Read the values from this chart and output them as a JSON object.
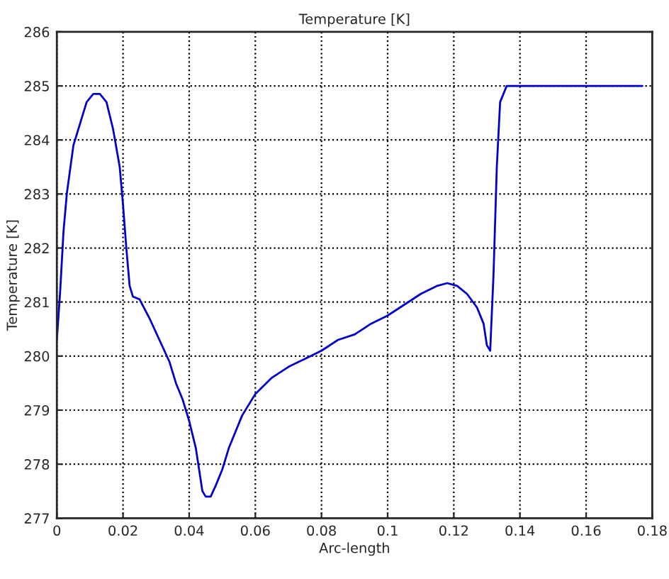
{
  "chart_data": {
    "type": "line",
    "title": "Temperature [K]",
    "xlabel": "Arc-length",
    "ylabel": "Temperature [K]",
    "x": [
      0,
      0.001,
      0.002,
      0.003,
      0.005,
      0.007,
      0.009,
      0.011,
      0.013,
      0.015,
      0.017,
      0.019,
      0.02,
      0.021,
      0.022,
      0.023,
      0.025,
      0.028,
      0.031,
      0.034,
      0.036,
      0.038,
      0.04,
      0.042,
      0.043,
      0.044,
      0.045,
      0.0465,
      0.048,
      0.05,
      0.052,
      0.054,
      0.056,
      0.058,
      0.06,
      0.065,
      0.07,
      0.075,
      0.08,
      0.085,
      0.09,
      0.095,
      0.1,
      0.105,
      0.11,
      0.115,
      0.118,
      0.121,
      0.124,
      0.127,
      0.129,
      0.13,
      0.131,
      0.132,
      0.133,
      0.134,
      0.136,
      0.177
    ],
    "series": [
      {
        "color": "#0000cc",
        "values": [
          280.3,
          281.2,
          282.3,
          283.0,
          283.9,
          284.3,
          284.7,
          284.85,
          284.85,
          284.7,
          284.2,
          283.5,
          282.8,
          282.0,
          281.3,
          281.1,
          281.05,
          280.7,
          280.3,
          279.9,
          279.5,
          279.2,
          278.8,
          278.3,
          277.9,
          277.5,
          277.4,
          277.4,
          277.6,
          277.9,
          278.3,
          278.6,
          278.9,
          279.1,
          279.3,
          279.6,
          279.8,
          279.95,
          280.1,
          280.3,
          280.4,
          280.6,
          280.75,
          280.95,
          281.15,
          281.3,
          281.35,
          281.3,
          281.15,
          280.9,
          280.6,
          280.2,
          280.1,
          281.5,
          283.5,
          284.7,
          285.0,
          285.0
        ]
      }
    ],
    "xlim": [
      0,
      0.18
    ],
    "xticks": [
      0,
      0.02,
      0.04,
      0.06,
      0.08,
      0.1,
      0.12,
      0.14,
      0.16,
      0.18
    ],
    "ylim": [
      277,
      286
    ],
    "yticks": [
      277,
      278,
      279,
      280,
      281,
      282,
      283,
      284,
      285,
      286
    ],
    "grid": true,
    "marker": "none",
    "line_style": "solid"
  }
}
